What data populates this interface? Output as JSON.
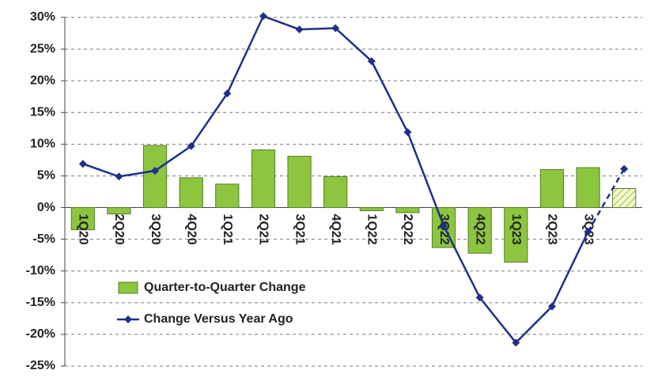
{
  "chart_data": {
    "type": "combo",
    "categories": [
      "1Q20",
      "2Q20",
      "3Q20",
      "4Q20",
      "1Q21",
      "2Q21",
      "3Q21",
      "4Q21",
      "1Q22",
      "2Q22",
      "3Q22",
      "4Q22",
      "1Q23",
      "2Q23",
      "3Q23",
      null
    ],
    "series": [
      {
        "name": "Quarter-to-Quarter Change",
        "type": "bar",
        "color": "#8cc63f",
        "values": [
          -3.5,
          -1.0,
          9.8,
          4.7,
          3.7,
          9.1,
          8.1,
          4.9,
          -0.5,
          -0.8,
          -6.3,
          -7.2,
          -8.6,
          6.0,
          6.3,
          3.0
        ]
      },
      {
        "name": "Change Versus Year Ago",
        "type": "line",
        "color": "#1f2f8c",
        "values": [
          6.9,
          4.9,
          5.8,
          9.7,
          18.0,
          30.2,
          28.1,
          28.3,
          23.1,
          11.9,
          -2.9,
          -14.2,
          -21.3,
          -15.6,
          -3.8,
          6.1
        ]
      }
    ],
    "ylim": [
      -25,
      30
    ],
    "yticks": [
      {
        "value": -25,
        "label": "-25%"
      },
      {
        "value": -20,
        "label": "-20%"
      },
      {
        "value": -15,
        "label": "-15%"
      },
      {
        "value": -10,
        "label": "-10%"
      },
      {
        "value": -5,
        "label": "-5%"
      },
      {
        "value": 0,
        "label": "0%"
      },
      {
        "value": 5,
        "label": "5%"
      },
      {
        "value": 10,
        "label": "10%"
      },
      {
        "value": 15,
        "label": "15%"
      },
      {
        "value": 20,
        "label": "20%"
      },
      {
        "value": 25,
        "label": "25%"
      },
      {
        "value": 30,
        "label": "30%"
      }
    ],
    "grid": true
  }
}
